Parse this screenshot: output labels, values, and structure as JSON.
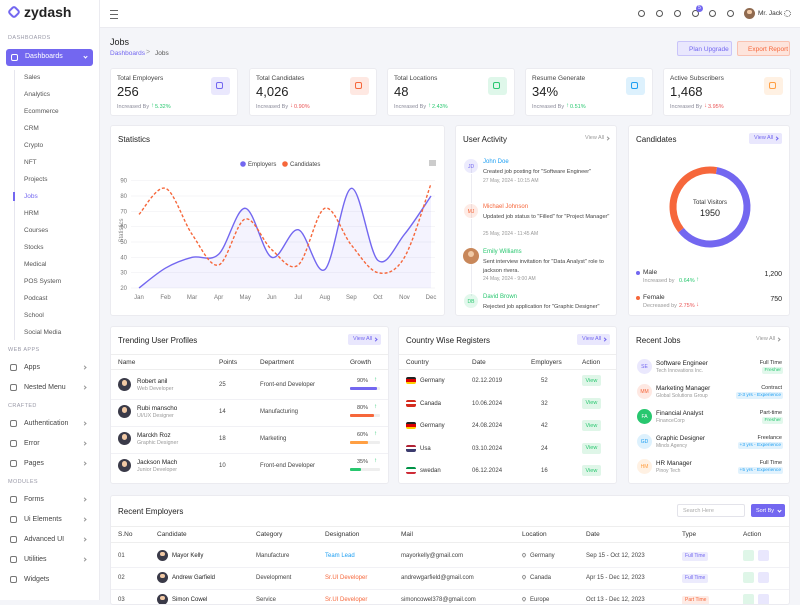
{
  "sidebar": {
    "brand": "zydash",
    "main_group": "DASHBOARDS",
    "main_item": "Dashboards",
    "submenu": [
      "Sales",
      "Analytics",
      "Ecommerce",
      "CRM",
      "Crypto",
      "NFT",
      "Projects",
      "Jobs",
      "HRM",
      "Courses",
      "Stocks",
      "Medical",
      "POS System",
      "Podcast",
      "School",
      "Social Media"
    ],
    "groups": [
      {
        "title": "WEB APPS",
        "items": [
          "Apps",
          "Nested Menu"
        ]
      },
      {
        "title": "CRAFTED",
        "items": [
          "Authentication",
          "Error",
          "Pages"
        ]
      },
      {
        "title": "MODULES",
        "items": [
          "Forms",
          "Ui Elements",
          "Advanced UI",
          "Utilities",
          "Widgets"
        ]
      }
    ]
  },
  "topbar": {
    "user": "Mr. Jack",
    "badge": "5"
  },
  "header": {
    "title": "Jobs",
    "breadcrumb": [
      "Dashboards",
      "Jobs"
    ],
    "buttons": [
      "Plan Upgrade",
      "Export Report"
    ]
  },
  "kpis": [
    {
      "title": "Total Employers",
      "value": "256",
      "change_label": "Increased By",
      "change": "5.32%",
      "trend": "up",
      "color": "#7367f0"
    },
    {
      "title": "Total Candidates",
      "value": "4,026",
      "change_label": "Increased By",
      "change": "0.90%",
      "trend": "down",
      "color": "#f6673b"
    },
    {
      "title": "Total Locations",
      "value": "48",
      "change_label": "Increased By",
      "change": "2.43%",
      "trend": "up",
      "color": "#28c76f"
    },
    {
      "title": "Resume Generate",
      "value": "34%",
      "change_label": "Increased By",
      "change": "0.51%",
      "trend": "up",
      "color": "#1e9ff2"
    },
    {
      "title": "Active Subscribers",
      "value": "1,468",
      "change_label": "Increased By",
      "change": "3.95%",
      "trend": "down",
      "color": "#ff9f43"
    }
  ],
  "statistics": {
    "title": "Statistics",
    "y_label": "Statistics",
    "categories": [
      "Jan",
      "Feb",
      "Mar",
      "Apr",
      "May",
      "Jun",
      "Jul",
      "Aug",
      "Sep",
      "Oct",
      "Nov",
      "Dec"
    ],
    "series": [
      {
        "name": "Employers",
        "color": "#7367f0",
        "values": [
          20,
          33,
          40,
          42,
          72,
          40,
          58,
          32,
          85,
          38,
          55,
          80
        ]
      },
      {
        "name": "Candidates",
        "color": "#f6673b",
        "values": [
          68,
          85,
          55,
          35,
          65,
          45,
          35,
          72,
          48,
          30,
          40,
          88
        ]
      }
    ],
    "ylim": [
      20,
      95
    ],
    "yticks": [
      20,
      30,
      40,
      50,
      60,
      70,
      80,
      90
    ],
    "grid": true
  },
  "user_activity": {
    "title": "User Activity",
    "view_all": "View All",
    "items": [
      {
        "initials": "JD",
        "color": "#7367f0",
        "name": "John Doe",
        "name_color": "#1e9ff2",
        "text": "Created job posting for \"Software Engineer\"",
        "time": "27 May, 2024 - 10:15 AM"
      },
      {
        "initials": "MJ",
        "color": "#f6673b",
        "name": "Michael Johnson",
        "name_color": "#f6673b",
        "text": "Updated job status to \"Filled\" for \"Project Manager\"",
        "time": "25 May, 2024 - 11:45 AM"
      },
      {
        "color": "#c8875a",
        "name": "Emily Williams",
        "name_color": "#28c76f",
        "text": "Sent interview invitation for \"Data Analyst\" role to jackson rivera.",
        "time": "24 May, 2024 - 9:00 AM"
      },
      {
        "initials": "DB",
        "color": "#28c76f",
        "name": "David Brown",
        "name_color": "#28c76f",
        "text": "Rejected job application for \"Graphic Designer\"",
        "time": "27 May, 2024 - 10:15 AM"
      }
    ]
  },
  "candidates": {
    "title": "Candidates",
    "view_all": "View All",
    "center_label": "Total Visitors",
    "total": "1950",
    "segments": [
      {
        "name": "Male",
        "value": 1200,
        "value_label": "1,200",
        "color": "#7367f0",
        "change_label": "Increased by",
        "change": "0.64%",
        "trend": "up"
      },
      {
        "name": "Female",
        "value": 750,
        "value_label": "750",
        "color": "#f6673b",
        "change_label": "Decreased by",
        "change": "2.75%",
        "trend": "down"
      }
    ]
  },
  "trending": {
    "title": "Trending User Profiles",
    "view_all": "View All",
    "columns": [
      "Name",
      "Points",
      "Department",
      "Growth"
    ],
    "rows": [
      {
        "name": "Robert anil",
        "role": "Web Developer",
        "points": "25",
        "department": "Front-end Developer",
        "growth": {
          "value": 90,
          "label": "90%"
        },
        "color": "#7367f0"
      },
      {
        "name": "Rubi manscho",
        "role": "UI/UX Designer",
        "points": "14",
        "department": "Manufacturing",
        "growth": {
          "value": 80,
          "label": "80%"
        },
        "color": "#f6673b"
      },
      {
        "name": "Marckh Roz",
        "role": "Graphic Designer",
        "points": "18",
        "department": "Marketing",
        "growth": {
          "value": 60,
          "label": "60%"
        },
        "color": "#ff9f43"
      },
      {
        "name": "Jackson Mach",
        "role": "Junior Developer",
        "points": "10",
        "department": "Front-end Developer",
        "growth": {
          "value": 35,
          "label": "35%"
        },
        "color": "#28c76f"
      }
    ]
  },
  "countries": {
    "title": "Country Wise Registers",
    "view_all": "View All",
    "columns": [
      "Country",
      "Date",
      "Employers",
      "Action"
    ],
    "rows": [
      {
        "country": "Germany",
        "flag": [
          "#222222",
          "#dd0000",
          "#ffce00"
        ],
        "date": "02.12.2019",
        "employers": "52",
        "action": "View"
      },
      {
        "country": "Canada",
        "flag": [
          "#d52b1e",
          "#ffffff",
          "#d52b1e"
        ],
        "date": "10.06.2024",
        "employers": "32",
        "action": "View"
      },
      {
        "country": "Germany",
        "flag": [
          "#222222",
          "#dd0000",
          "#ffce00"
        ],
        "date": "24.08.2024",
        "employers": "42",
        "action": "View"
      },
      {
        "country": "Usa",
        "flag": [
          "#b22234",
          "#ffffff",
          "#3c3b6e"
        ],
        "date": "03.10.2024",
        "employers": "24",
        "action": "View"
      },
      {
        "country": "swedan",
        "flag": [
          "#009246",
          "#ffffff",
          "#ce2b37"
        ],
        "date": "06.12.2024",
        "employers": "16",
        "action": "View"
      }
    ]
  },
  "recent_jobs": {
    "title": "Recent Jobs",
    "view_all": "View All",
    "items": [
      {
        "initials": "SE",
        "color": "#7367f0",
        "title": "Software Engineer",
        "company": "Tech Innovations Inc.",
        "type": "Full Time",
        "badge": "Fresher",
        "badge_color": "#28c76f"
      },
      {
        "initials": "MM",
        "color": "#f6673b",
        "title": "Marketing Manager",
        "company": "Global Solutions Group",
        "type": "Contract",
        "badge": "2-3 yrs - Experience",
        "badge_color": "#1e9ff2"
      },
      {
        "initials": "FA",
        "color": "#28c76f",
        "title": "Financial Analyst",
        "company": "FinanceCorp",
        "type": "Part-time",
        "badge": "Fresher",
        "badge_color": "#28c76f"
      },
      {
        "initials": "GD",
        "color": "#1e9ff2",
        "title": "Graphic Designer",
        "company": "Minds Agency",
        "type": "Freelance",
        "badge": "+3 yrs - Experience",
        "badge_color": "#1e9ff2"
      },
      {
        "initials": "HM",
        "color": "#ff9f43",
        "title": "HR Manager",
        "company": "Pinoy Tech",
        "type": "Full Time",
        "badge": "+5 yrs - Experience",
        "badge_color": "#1e9ff2"
      }
    ]
  },
  "recent_employers": {
    "title": "Recent Employers",
    "search_placeholder": "Search Here",
    "sort": "Sort By",
    "columns": [
      "S.No",
      "Candidate",
      "Category",
      "Designation",
      "Mail",
      "Location",
      "Date",
      "Type",
      "Action"
    ],
    "rows": [
      {
        "no": "01",
        "name": "Mayor Kelly",
        "category": "Manufacture",
        "designation": "Team Lead",
        "designation_color": "#1e9ff2",
        "mail": "mayorkelly@gmail.com",
        "location": "Germany",
        "date": "Sep 15 - Oct 12, 2023",
        "type": "Full Time",
        "type_color": "#7367f0"
      },
      {
        "no": "02",
        "name": "Andrew Garfield",
        "category": "Development",
        "designation": "Sr.UI Developer",
        "designation_color": "#f6673b",
        "mail": "andrewgarfield@gmail.com",
        "location": "Canada",
        "date": "Apr 15 - Dec 12, 2023",
        "type": "Full Time",
        "type_color": "#7367f0"
      },
      {
        "no": "03",
        "name": "Simon Cowel",
        "category": "Service",
        "designation": "Sr.UI Developer",
        "designation_color": "#f6673b",
        "mail": "simoncowel378@gmail.com",
        "location": "Europe",
        "date": "Oct 13 - Dec 12, 2023",
        "type": "Part Time",
        "type_color": "#f6673b"
      }
    ]
  }
}
